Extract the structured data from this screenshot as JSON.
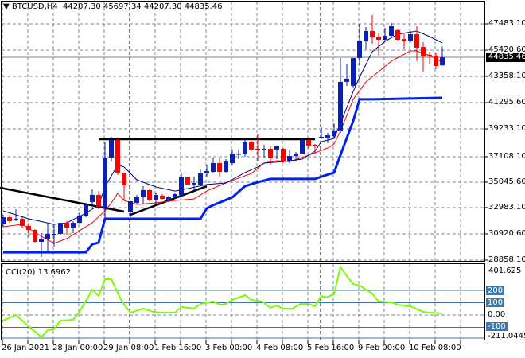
{
  "header": {
    "symbol": "BTCUSD,H4",
    "open": "44207.30",
    "high": "45697.34",
    "low": "44207.30",
    "close": "44835.46"
  },
  "price_axis": [
    "47483.10",
    "45420.60",
    "43358.10",
    "41295.60",
    "39233.10",
    "37108.10",
    "35045.60",
    "32983.10",
    "30920.60",
    "28858.10"
  ],
  "current_price": "44835.46",
  "cci_panel": {
    "label": "CCI(20) 13.6962",
    "max": "401.625",
    "min": "-211.0445",
    "levels": [
      "200",
      "100",
      "0.00",
      "-100"
    ]
  },
  "time_axis": [
    "26 Jan 2021",
    "28 Jan 00:00",
    "29 Jan 08:00",
    "1 Feb 16:00",
    "3 Feb 00:00",
    "4 Feb 08:00",
    "5 Feb 16:00",
    "9 Feb 00:00",
    "10 Feb 08:00"
  ],
  "colors": {
    "bull": "#0a1fb4",
    "bear": "#ff0000",
    "ma_fast": "#000080",
    "ma_slow": "#ff0000",
    "support": "#0022ee",
    "trend": "#000000",
    "cci": "#7cfc00",
    "level": "#3c78b0"
  },
  "chart_data": {
    "type": "candlestick",
    "title": "BTCUSD,H4",
    "ylim": [
      28858.1,
      47483.1
    ],
    "candles_ohlc": [
      [
        31680,
        32430,
        31490,
        32240
      ],
      [
        32240,
        32430,
        31800,
        31930
      ],
      [
        31990,
        32870,
        31930,
        32120
      ],
      [
        32120,
        32240,
        31370,
        31550
      ],
      [
        31550,
        31800,
        30680,
        31240
      ],
      [
        31240,
        31300,
        30240,
        30300
      ],
      [
        30300,
        30990,
        29110,
        30550
      ],
      [
        30550,
        31680,
        29550,
        30930
      ],
      [
        30860,
        31680,
        29920,
        30930
      ],
      [
        30930,
        31800,
        30860,
        31800
      ],
      [
        31800,
        31930,
        30800,
        31430
      ],
      [
        31430,
        31930,
        30990,
        31800
      ],
      [
        31800,
        32620,
        31740,
        32370
      ],
      [
        32310,
        33370,
        32240,
        33250
      ],
      [
        33440,
        34440,
        33250,
        34000
      ],
      [
        34000,
        34310,
        32870,
        33060
      ],
      [
        33000,
        38140,
        32120,
        36950
      ],
      [
        36950,
        38580,
        36630,
        38330
      ],
      [
        38330,
        38520,
        35570,
        35760
      ],
      [
        35760,
        35760,
        33560,
        34750
      ],
      [
        32620,
        33500,
        32240,
        33500
      ],
      [
        33370,
        34000,
        33250,
        33810
      ],
      [
        33810,
        34690,
        33250,
        34380
      ],
      [
        34380,
        34500,
        33500,
        33620
      ],
      [
        33620,
        34130,
        33250,
        34000
      ],
      [
        33940,
        34060,
        33560,
        33690
      ],
      [
        33560,
        33940,
        33440,
        33810
      ],
      [
        33810,
        34190,
        33690,
        34060
      ],
      [
        34000,
        35690,
        33870,
        35380
      ],
      [
        35380,
        35440,
        34750,
        34820
      ],
      [
        34820,
        35440,
        34310,
        34940
      ],
      [
        34820,
        36010,
        34750,
        35690
      ],
      [
        35690,
        36380,
        35380,
        35880
      ],
      [
        35820,
        36950,
        35760,
        36510
      ],
      [
        36510,
        36890,
        35440,
        35820
      ],
      [
        35820,
        36820,
        35760,
        36630
      ],
      [
        36510,
        37580,
        36380,
        37200
      ],
      [
        37200,
        37580,
        36820,
        37260
      ],
      [
        37260,
        38390,
        37010,
        38200
      ],
      [
        38200,
        38260,
        37450,
        37580
      ],
      [
        37640,
        38830,
        36700,
        37510
      ],
      [
        37580,
        37950,
        36950,
        37640
      ],
      [
        37640,
        37890,
        36320,
        36890
      ],
      [
        37580,
        37890,
        36820,
        37830
      ],
      [
        37640,
        37700,
        36510,
        36630
      ],
      [
        36630,
        37510,
        36510,
        37070
      ],
      [
        37070,
        37390,
        36630,
        37260
      ],
      [
        37260,
        38450,
        37200,
        38330
      ],
      [
        38330,
        38390,
        37640,
        37890
      ],
      [
        37950,
        38010,
        37260,
        37890
      ],
      [
        38520,
        39330,
        38390,
        38580
      ],
      [
        38520,
        38890,
        38080,
        38700
      ],
      [
        38640,
        39640,
        38520,
        39020
      ],
      [
        39020,
        44790,
        38890,
        42910
      ],
      [
        42910,
        44350,
        42590,
        43160
      ],
      [
        42590,
        44790,
        42470,
        44790
      ],
      [
        44790,
        47480,
        44220,
        46170
      ],
      [
        46100,
        47230,
        45480,
        46920
      ],
      [
        46920,
        48170,
        45920,
        46420
      ],
      [
        46480,
        46730,
        44980,
        46230
      ],
      [
        46230,
        47170,
        46100,
        46540
      ],
      [
        46540,
        47550,
        46420,
        47300
      ],
      [
        46990,
        47050,
        46170,
        46230
      ],
      [
        46290,
        46790,
        45540,
        46100
      ],
      [
        46100,
        46920,
        46040,
        46670
      ],
      [
        46670,
        47300,
        44540,
        45600
      ],
      [
        45660,
        46040,
        43720,
        44910
      ],
      [
        45040,
        45290,
        44350,
        44910
      ],
      [
        44980,
        45230,
        43910,
        44160
      ],
      [
        44207.3,
        45697.34,
        44207.3,
        44835.46
      ]
    ],
    "ma_fast": [
      [
        0,
        32740
      ],
      [
        4,
        32120
      ],
      [
        8,
        31680
      ],
      [
        10,
        31800
      ],
      [
        13,
        32560
      ],
      [
        15,
        33190
      ],
      [
        16,
        34630
      ],
      [
        18,
        36380
      ],
      [
        19,
        36200
      ],
      [
        21,
        35190
      ],
      [
        24,
        34630
      ],
      [
        27,
        34310
      ],
      [
        29,
        34500
      ],
      [
        32,
        34820
      ],
      [
        35,
        34940
      ],
      [
        38,
        35760
      ],
      [
        40,
        36200
      ],
      [
        41,
        36510
      ],
      [
        44,
        36630
      ],
      [
        47,
        36820
      ],
      [
        49,
        37450
      ],
      [
        50,
        38200
      ],
      [
        52,
        38450
      ],
      [
        53,
        39640
      ],
      [
        55,
        42150
      ],
      [
        56,
        43280
      ],
      [
        58,
        45290
      ],
      [
        60,
        46100
      ],
      [
        62,
        46670
      ],
      [
        65,
        46920
      ],
      [
        67,
        46480
      ],
      [
        69,
        45980
      ]
    ],
    "ma_slow": [
      [
        0,
        31490
      ],
      [
        3,
        31680
      ],
      [
        6,
        30740
      ],
      [
        8,
        30180
      ],
      [
        10,
        30550
      ],
      [
        12,
        31180
      ],
      [
        14,
        31800
      ],
      [
        16,
        32750
      ],
      [
        17,
        33370
      ],
      [
        18,
        34130
      ],
      [
        19,
        33560
      ],
      [
        21,
        33250
      ],
      [
        24,
        33370
      ],
      [
        27,
        33560
      ],
      [
        30,
        33690
      ],
      [
        32,
        34310
      ],
      [
        35,
        34940
      ],
      [
        37,
        35320
      ],
      [
        39,
        35690
      ],
      [
        41,
        36510
      ],
      [
        43,
        36700
      ],
      [
        45,
        36630
      ],
      [
        47,
        36950
      ],
      [
        49,
        37320
      ],
      [
        51,
        37700
      ],
      [
        52,
        38010
      ],
      [
        53,
        39020
      ],
      [
        55,
        41530
      ],
      [
        57,
        42910
      ],
      [
        59,
        43720
      ],
      [
        61,
        44540
      ],
      [
        64,
        45350
      ],
      [
        65,
        45350
      ],
      [
        67,
        44980
      ],
      [
        69,
        44470
      ]
    ],
    "support_line": [
      [
        0,
        29480
      ],
      [
        13,
        29480
      ],
      [
        14,
        30110
      ],
      [
        15,
        30240
      ],
      [
        16,
        32120
      ],
      [
        31,
        32120
      ],
      [
        32,
        32940
      ],
      [
        33,
        33190
      ],
      [
        36,
        33810
      ],
      [
        38,
        34690
      ],
      [
        40,
        35000
      ],
      [
        42,
        35260
      ],
      [
        49,
        35260
      ],
      [
        50,
        35440
      ],
      [
        52,
        35760
      ],
      [
        53,
        37140
      ],
      [
        55,
        39830
      ],
      [
        56,
        41530
      ],
      [
        58,
        41530
      ],
      [
        69,
        41650
      ]
    ],
    "trendlines": [
      [
        [
          15,
          38390
        ],
        [
          49,
          38390
        ]
      ],
      [
        [
          -0.5,
          34566
        ],
        [
          19,
          32683
        ]
      ],
      [
        [
          20,
          32433
        ],
        [
          32,
          34690
        ]
      ]
    ],
    "cci": {
      "ylim": [
        -211.0445,
        401.625
      ],
      "levels": [
        200,
        100,
        0,
        -100
      ],
      "values": [
        [
          0,
          -45
        ],
        [
          2,
          0
        ],
        [
          4,
          -90
        ],
        [
          6,
          -180
        ],
        [
          7,
          -123
        ],
        [
          8,
          -116
        ],
        [
          9,
          -45
        ],
        [
          11,
          -39
        ],
        [
          12,
          26
        ],
        [
          14,
          206
        ],
        [
          15,
          155
        ],
        [
          16,
          290
        ],
        [
          17,
          290
        ],
        [
          18.6,
          116
        ],
        [
          20,
          19
        ],
        [
          22,
          52
        ],
        [
          23.6,
          26
        ],
        [
          25,
          19
        ],
        [
          27,
          19
        ],
        [
          28,
          65
        ],
        [
          30,
          52
        ],
        [
          31,
          90
        ],
        [
          33,
          110
        ],
        [
          34,
          84
        ],
        [
          35,
          90
        ],
        [
          36,
          123
        ],
        [
          38,
          161
        ],
        [
          39,
          123
        ],
        [
          40.7,
          110
        ],
        [
          42,
          58
        ],
        [
          43,
          77
        ],
        [
          44,
          52
        ],
        [
          45.5,
          52
        ],
        [
          46.7,
          90
        ],
        [
          48,
          90
        ],
        [
          49,
          71
        ],
        [
          50,
          155
        ],
        [
          50.7,
          142
        ],
        [
          52,
          168
        ],
        [
          53,
          390
        ],
        [
          54,
          316
        ],
        [
          55,
          252
        ],
        [
          56,
          239
        ],
        [
          58,
          174
        ],
        [
          59,
          110
        ],
        [
          61,
          103
        ],
        [
          62,
          84
        ],
        [
          64,
          71
        ],
        [
          66,
          26
        ],
        [
          67,
          19
        ],
        [
          69,
          13.6962
        ]
      ]
    }
  }
}
